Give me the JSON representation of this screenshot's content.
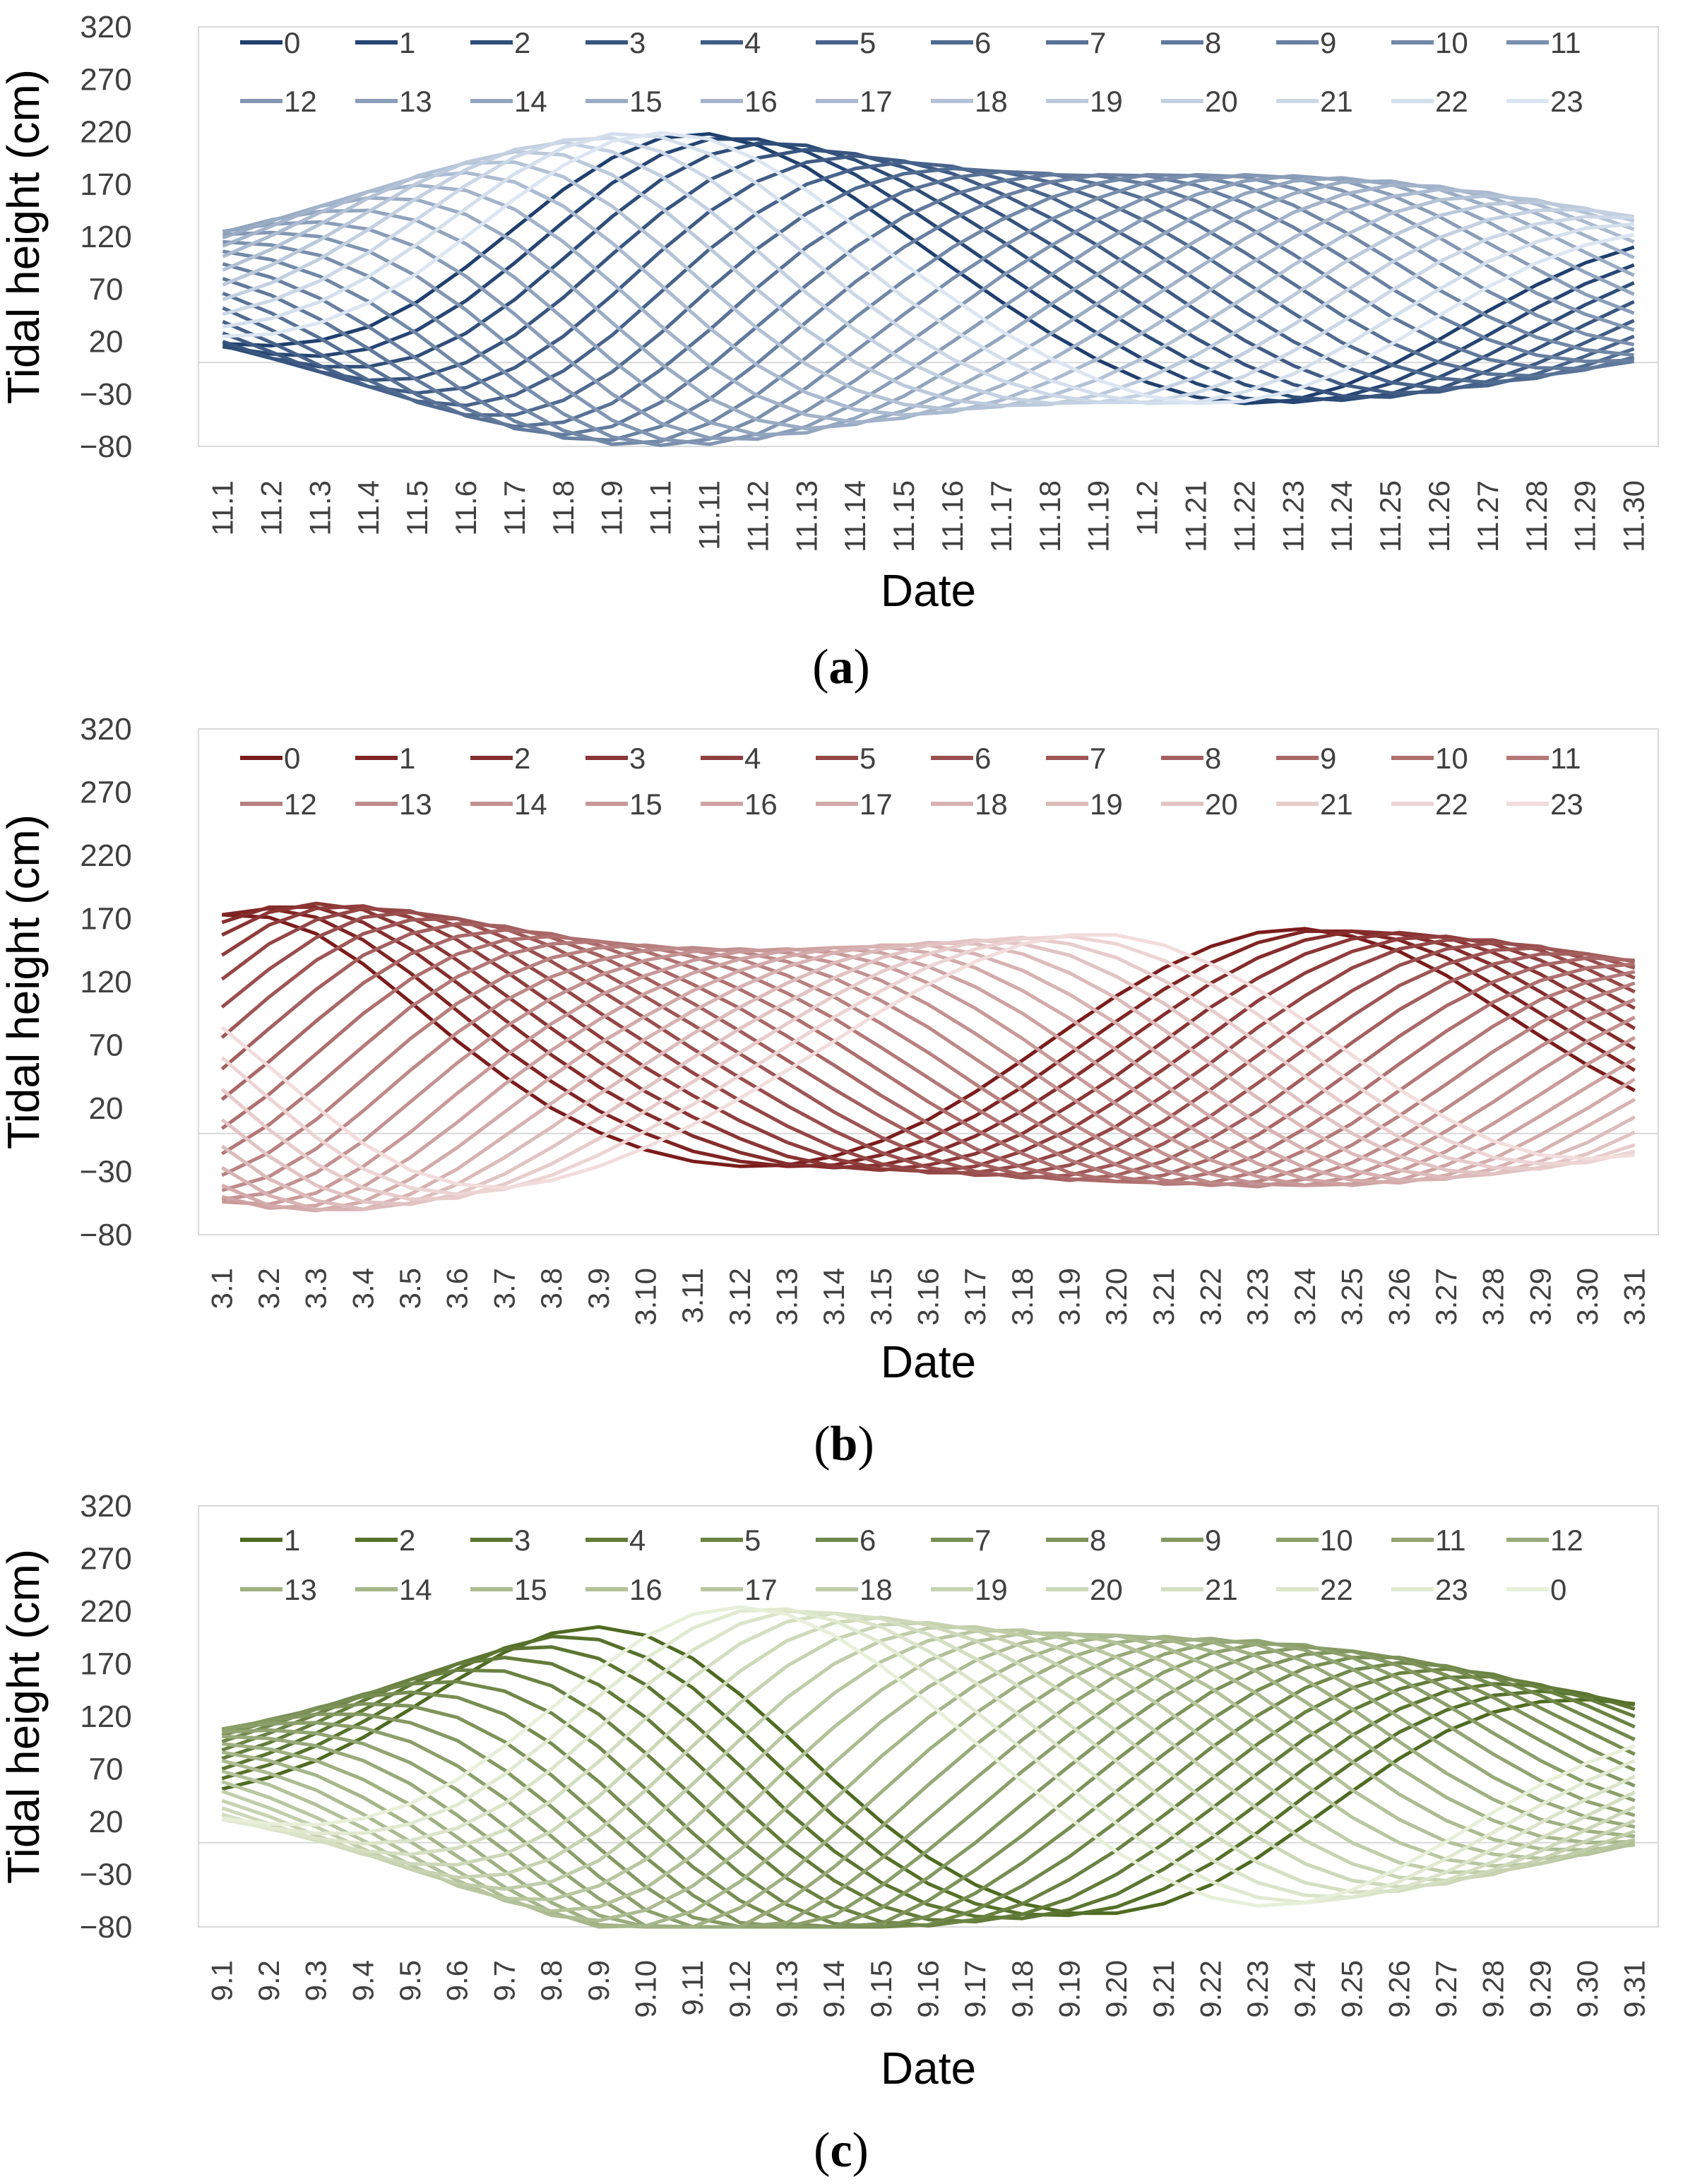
{
  "chart_data": [
    {
      "panel": "a",
      "panel_label": "a",
      "type": "line",
      "title": "",
      "xlabel": "Date",
      "ylabel": "Tidal height (cm)",
      "ylim": [
        -80,
        320
      ],
      "yticks": [
        -80,
        -30,
        20,
        70,
        120,
        170,
        220,
        270,
        320
      ],
      "ytick_labels": [
        "−80",
        "−30",
        "20",
        "70",
        "120",
        "170",
        "220",
        "270",
        "320"
      ],
      "categories": [
        "11.1",
        "11.2",
        "11.3",
        "11.4",
        "11.5",
        "11.6",
        "11.7",
        "11.8",
        "11.9",
        "11.1",
        "11.11",
        "11.12",
        "11.13",
        "11.14",
        "11.15",
        "11.16",
        "11.17",
        "11.18",
        "11.19",
        "11.2",
        "11.21",
        "11.22",
        "11.23",
        "11.24",
        "11.25",
        "11.26",
        "11.27",
        "11.28",
        "11.29",
        "11.30"
      ],
      "legend_position": "top",
      "legend_entries": [
        "0",
        "1",
        "2",
        "3",
        "4",
        "5",
        "6",
        "7",
        "8",
        "9",
        "10",
        "11",
        "12",
        "13",
        "14",
        "15",
        "16",
        "17",
        "18",
        "19",
        "20",
        "21",
        "22",
        "23"
      ],
      "color_dark": "#1f3f6e",
      "color_light": "#dce6f2",
      "model": {
        "mean": 70,
        "s": 0.15,
        "a1": 120,
        "a2": 85,
        "d1": 8.2,
        "d2": 22.2,
        "w1": 5.2,
        "w2": 6.5,
        "phi0": 2.8,
        "dphi": -0.28,
        "slope": 0.96
      }
    },
    {
      "panel": "b",
      "panel_label": "b",
      "type": "line",
      "title": "",
      "xlabel": "Date",
      "ylabel": "Tidal height (cm)",
      "ylim": [
        -80,
        320
      ],
      "yticks": [
        -80,
        -30,
        20,
        70,
        120,
        170,
        220,
        270,
        320
      ],
      "ytick_labels": [
        "−80",
        "−30",
        "20",
        "70",
        "120",
        "170",
        "220",
        "270",
        "320"
      ],
      "categories": [
        "3.1",
        "3.2",
        "3.3",
        "3.4",
        "3.5",
        "3.6",
        "3.7",
        "3.8",
        "3.9",
        "3.10",
        "3.11",
        "3.12",
        "3.13",
        "3.14",
        "3.15",
        "3.16",
        "3.17",
        "3.18",
        "3.19",
        "3.20",
        "3.21",
        "3.22",
        "3.23",
        "3.24",
        "3.25",
        "3.26",
        "3.27",
        "3.28",
        "3.29",
        "3.30",
        "3.31"
      ],
      "legend_position": "top",
      "legend_entries": [
        "0",
        "1",
        "2",
        "3",
        "4",
        "5",
        "6",
        "7",
        "8",
        "9",
        "10",
        "11",
        "12",
        "13",
        "14",
        "15",
        "16",
        "17",
        "18",
        "19",
        "20",
        "21",
        "22",
        "23"
      ],
      "color_dark": "#7b1c1c",
      "color_light": "#f2dcdc",
      "model": {
        "mean": 60,
        "s": 0.15,
        "a1": 80,
        "a2": 50,
        "d1": 1.2,
        "d2": 26.5,
        "w1": 4.5,
        "w2": 6.5,
        "phi0": 0.1,
        "dphi": 0.27,
        "slope": -0.8,
        "amp3": 60,
        "d3": 14.5,
        "w3": 9
      }
    },
    {
      "panel": "c",
      "panel_label": "c",
      "type": "line",
      "title": "",
      "xlabel": "Date",
      "ylabel": "Tidal height (cm)",
      "ylim": [
        -80,
        320
      ],
      "yticks": [
        -80,
        -30,
        20,
        70,
        120,
        170,
        220,
        270,
        320
      ],
      "ytick_labels": [
        "−80",
        "−30",
        "20",
        "70",
        "120",
        "170",
        "220",
        "270",
        "320"
      ],
      "categories": [
        "9.1",
        "9.2",
        "9.3",
        "9.4",
        "9.5",
        "9.6",
        "9.7",
        "9.8",
        "9.9",
        "9.10",
        "9.11",
        "9.12",
        "9.13",
        "9.14",
        "9.15",
        "9.16",
        "9.17",
        "9.18",
        "9.19",
        "9.20",
        "9.21",
        "9.22",
        "9.23",
        "9.24",
        "9.25",
        "9.26",
        "9.27",
        "9.28",
        "9.29",
        "9.30",
        "9.31"
      ],
      "legend_position": "top",
      "legend_entries": [
        "1",
        "2",
        "3",
        "4",
        "5",
        "6",
        "7",
        "8",
        "9",
        "10",
        "11",
        "12",
        "13",
        "14",
        "15",
        "16",
        "17",
        "18",
        "19",
        "20",
        "21",
        "22",
        "23",
        "0"
      ],
      "color_dark": "#4f6b22",
      "color_light": "#e8efd9",
      "model": {
        "mean": 65,
        "s": 0.15,
        "a1": 120,
        "a2": 100,
        "d1": 9.5,
        "d2": 22,
        "w1": 5.2,
        "w2": 6.5,
        "phi0": -1.9,
        "dphi": 0.27,
        "slope": 0.83
      }
    }
  ]
}
